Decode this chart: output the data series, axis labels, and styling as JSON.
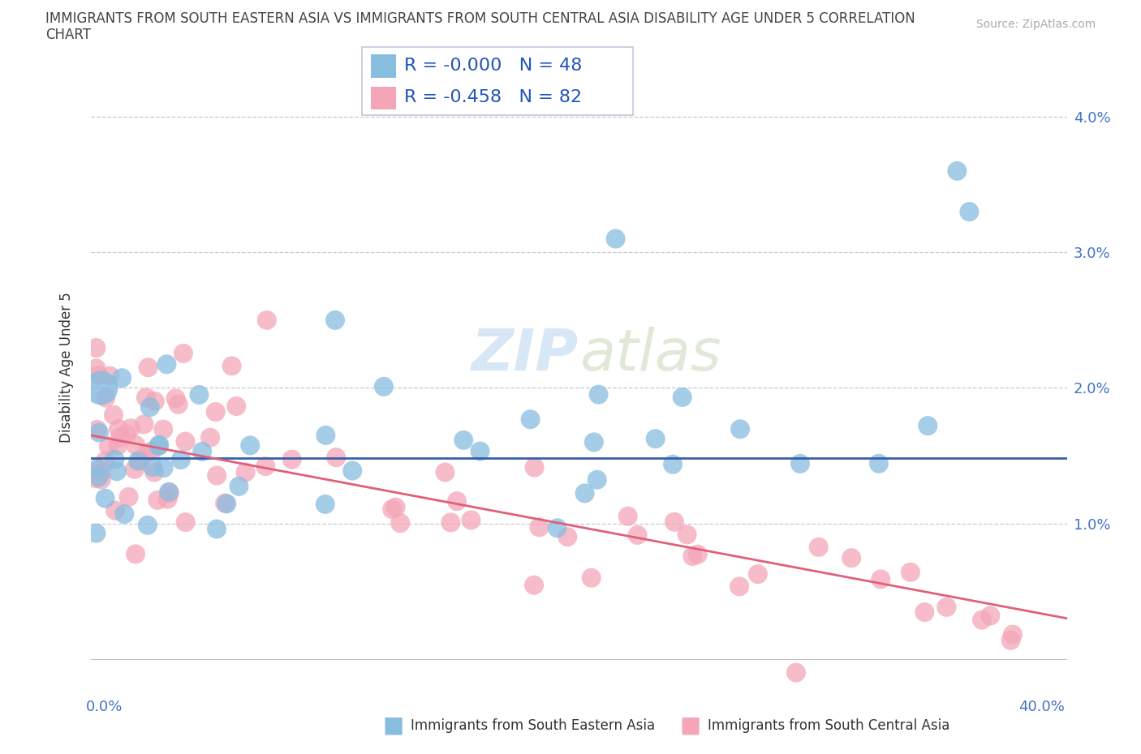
{
  "title_line1": "IMMIGRANTS FROM SOUTH EASTERN ASIA VS IMMIGRANTS FROM SOUTH CENTRAL ASIA DISABILITY AGE UNDER 5 CORRELATION",
  "title_line2": "CHART",
  "source_text": "Source: ZipAtlas.com",
  "ylabel": "Disability Age Under 5",
  "ytick_vals": [
    0.01,
    0.02,
    0.03,
    0.04
  ],
  "ytick_labels": [
    "1.0%",
    "2.0%",
    "3.0%",
    "4.0%"
  ],
  "xlim": [
    0.0,
    0.4
  ],
  "ylim": [
    -0.002,
    0.045
  ],
  "color_sea": "#89bde0",
  "color_sca": "#f4a6b8",
  "R_sea": -0.0,
  "N_sea": 48,
  "R_sca": -0.458,
  "N_sca": 82,
  "legend1_label": "Immigrants from South Eastern Asia",
  "legend2_label": "Immigrants from South Central Asia",
  "line_color_sea": "#3a5fa8",
  "line_color_sca": "#e0607a",
  "sea_line_y": 0.0148,
  "sca_line_y0": 0.0165,
  "sca_line_y1": 0.003
}
